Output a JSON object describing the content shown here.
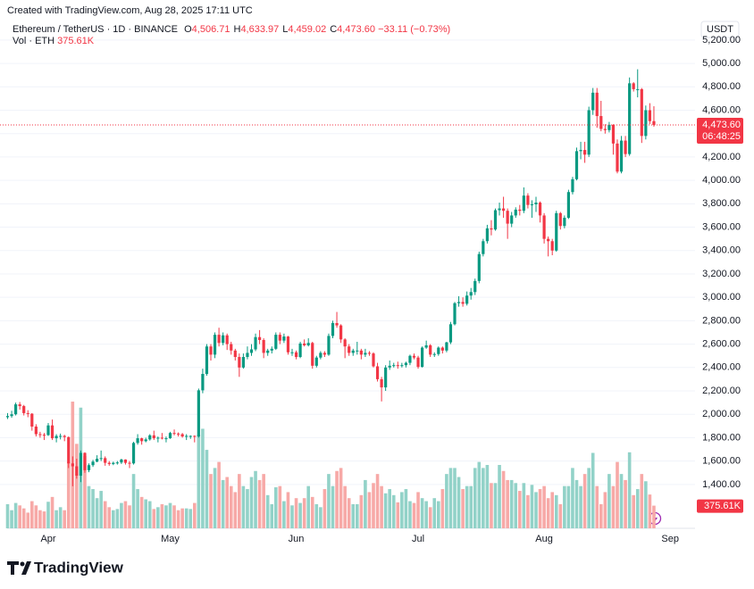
{
  "header": {
    "watermark": "Created with TradingView.com, Aug 28, 2025 17:11 UTC",
    "symbol": "Ethereum / TetherUS · 1D · BINANCE",
    "ohlc": [
      {
        "key": "O",
        "value": "4,506.71"
      },
      {
        "key": "H",
        "value": "4,633.97"
      },
      {
        "key": "L",
        "value": "4,459.02"
      },
      {
        "key": "C",
        "value": "4,473.60"
      }
    ],
    "change": "−33.11 (−0.73%)",
    "volume_name": "Vol · ETH",
    "volume_value": "375.61K"
  },
  "chart_data": {
    "type": "candlestick",
    "currency": "USDT",
    "last_price_label": "4,473.60",
    "countdown": "06:48:25",
    "volume_label": "375.61K",
    "grid": true,
    "colors": {
      "up": "#089981",
      "down": "#f23645",
      "up_volume": "#92d2c8",
      "down_volume": "#f7a9a7"
    },
    "ylim": [
      1025,
      5405
    ],
    "yticks": [
      {
        "value": 1400,
        "label": "1,400.00"
      },
      {
        "value": 1600,
        "label": "1,600.00"
      },
      {
        "value": 1800,
        "label": "1,800.00"
      },
      {
        "value": 2000,
        "label": "2,000.00"
      },
      {
        "value": 2200,
        "label": "2,200.00"
      },
      {
        "value": 2400,
        "label": "2,400.00"
      },
      {
        "value": 2600,
        "label": "2,600.00"
      },
      {
        "value": 2800,
        "label": "2,800.00"
      },
      {
        "value": 3000,
        "label": "3,000.00"
      },
      {
        "value": 3200,
        "label": "3,200.00"
      },
      {
        "value": 3400,
        "label": "3,400.00"
      },
      {
        "value": 3600,
        "label": "3,600.00"
      },
      {
        "value": 3800,
        "label": "3,800.00"
      },
      {
        "value": 4000,
        "label": "4,000.00"
      },
      {
        "value": 4200,
        "label": "4,200.00"
      },
      {
        "value": 4400,
        "label": "4,400.00"
      },
      {
        "value": 4600,
        "label": "4,600.00"
      },
      {
        "value": 4800,
        "label": "4,800.00"
      },
      {
        "value": 5000,
        "label": "5,000.00"
      },
      {
        "value": 5200,
        "label": "5,200.00"
      }
    ],
    "categories": [
      null,
      null,
      null,
      null,
      null,
      null,
      null,
      null,
      null,
      null,
      "Apr",
      null,
      null,
      null,
      null,
      null,
      null,
      null,
      null,
      null,
      null,
      null,
      null,
      null,
      null,
      null,
      null,
      null,
      null,
      null,
      null,
      null,
      null,
      null,
      null,
      null,
      null,
      null,
      null,
      null,
      "May",
      null,
      null,
      null,
      null,
      null,
      null,
      null,
      null,
      null,
      null,
      null,
      null,
      null,
      null,
      null,
      null,
      null,
      null,
      null,
      null,
      null,
      null,
      null,
      null,
      null,
      null,
      null,
      null,
      null,
      null,
      "Jun",
      null,
      null,
      null,
      null,
      null,
      null,
      null,
      null,
      null,
      null,
      null,
      null,
      null,
      null,
      null,
      null,
      null,
      null,
      null,
      null,
      null,
      null,
      null,
      null,
      null,
      null,
      null,
      null,
      null,
      "Jul",
      null,
      null,
      null,
      null,
      null,
      null,
      null,
      null,
      null,
      null,
      null,
      null,
      null,
      null,
      null,
      null,
      null,
      null,
      null,
      null,
      null,
      null,
      null,
      null,
      null,
      null,
      null,
      null,
      null,
      null,
      "Aug",
      null,
      null,
      null,
      null,
      null,
      null,
      null,
      null,
      null,
      null,
      null,
      null,
      null,
      null,
      null,
      null,
      null,
      null,
      null,
      null,
      null,
      null,
      null,
      null,
      null,
      null,
      null,
      null,
      null,
      null,
      "Sep"
    ],
    "open": [
      1975,
      1985,
      2000,
      2085,
      2070,
      2010,
      2005,
      1895,
      1830,
      1825,
      1822,
      1905,
      1795,
      1815,
      1815,
      1805,
      1580,
      1555,
      1475,
      1670,
      1522,
      1565,
      1595,
      1620,
      1625,
      1585,
      1575,
      1585,
      1588,
      1613,
      1585,
      1580,
      1755,
      1795,
      1770,
      1785,
      1820,
      1795,
      1800,
      1795,
      1795,
      1840,
      1835,
      1830,
      1810,
      1815,
      1815,
      1810,
      2205,
      2345,
      2580,
      2510,
      2680,
      2610,
      2675,
      2600,
      2545,
      2490,
      2400,
      2490,
      2525,
      2555,
      2660,
      2635,
      2525,
      2545,
      2560,
      2680,
      2630,
      2665,
      2530,
      2530,
      2490,
      2605,
      2590,
      2610,
      2415,
      2485,
      2525,
      2510,
      2670,
      2780,
      2760,
      2640,
      2580,
      2525,
      2545,
      2545,
      2510,
      2525,
      2520,
      2410,
      2300,
      2230,
      2400,
      2415,
      2420,
      2415,
      2420,
      2440,
      2500,
      2485,
      2405,
      2570,
      2590,
      2510,
      2515,
      2570,
      2545,
      2615,
      2770,
      2950,
      2960,
      2945,
      3015,
      3045,
      3140,
      3370,
      3480,
      3590,
      3580,
      3745,
      3760,
      3740,
      3630,
      3700,
      3750,
      3740,
      3870,
      3790,
      3795,
      3810,
      3700,
      3500,
      3480,
      3400,
      3720,
      3610,
      3680,
      3900,
      4010,
      4250,
      4260,
      4220,
      4600,
      4750,
      4550,
      4440,
      4430,
      4475,
      4315,
      4075,
      4340,
      4225,
      4830,
      4780,
      4780,
      4380,
      4600,
      4506.71,
      null,
      null,
      null,
      null
    ],
    "high": [
      2010,
      2030,
      2100,
      2105,
      2080,
      2035,
      2010,
      1915,
      1850,
      1840,
      1925,
      1955,
      1830,
      1835,
      1825,
      1810,
      1640,
      1620,
      1690,
      1675,
      1580,
      1610,
      1650,
      1690,
      1640,
      1600,
      1595,
      1600,
      1620,
      1615,
      1600,
      1765,
      1830,
      1800,
      1800,
      1830,
      1860,
      1810,
      1840,
      1810,
      1850,
      1870,
      1845,
      1840,
      1830,
      1820,
      1820,
      2220,
      2390,
      2600,
      2600,
      2700,
      2740,
      2700,
      2690,
      2620,
      2560,
      2520,
      2520,
      2580,
      2600,
      2690,
      2720,
      2650,
      2560,
      2580,
      2700,
      2700,
      2690,
      2670,
      2560,
      2545,
      2620,
      2640,
      2650,
      2620,
      2500,
      2540,
      2540,
      2690,
      2800,
      2875,
      2770,
      2650,
      2600,
      2560,
      2620,
      2560,
      2560,
      2540,
      2530,
      2440,
      2320,
      2420,
      2460,
      2440,
      2450,
      2440,
      2450,
      2510,
      2520,
      2500,
      2580,
      2630,
      2600,
      2530,
      2580,
      2580,
      2620,
      2790,
      2960,
      3010,
      3000,
      3050,
      3080,
      3160,
      3390,
      3500,
      3620,
      3660,
      3760,
      3810,
      3860,
      3760,
      3730,
      3770,
      3790,
      3940,
      3890,
      3830,
      3860,
      3820,
      3720,
      3520,
      3500,
      3740,
      3730,
      3700,
      3920,
      4030,
      4280,
      4330,
      4330,
      4630,
      4790,
      4790,
      4680,
      4480,
      4500,
      4480,
      4350,
      4380,
      4380,
      4880,
      4840,
      4950,
      4790,
      4640,
      4660,
      4633.97,
      null,
      null,
      null,
      null
    ],
    "low": [
      1960,
      1970,
      1990,
      2040,
      1990,
      1975,
      1860,
      1810,
      1800,
      1780,
      1815,
      1780,
      1760,
      1785,
      1770,
      1540,
      1385,
      1450,
      1420,
      1500,
      1505,
      1550,
      1590,
      1600,
      1560,
      1560,
      1565,
      1570,
      1575,
      1570,
      1540,
      1570,
      1740,
      1740,
      1760,
      1775,
      1780,
      1760,
      1785,
      1760,
      1790,
      1820,
      1810,
      1800,
      1780,
      1790,
      1760,
      1800,
      2180,
      2330,
      2460,
      2480,
      2580,
      2590,
      2550,
      2510,
      2460,
      2320,
      2390,
      2470,
      2500,
      2540,
      2600,
      2480,
      2500,
      2520,
      2550,
      2600,
      2610,
      2510,
      2500,
      2470,
      2480,
      2580,
      2580,
      2390,
      2400,
      2470,
      2490,
      2500,
      2650,
      2740,
      2610,
      2480,
      2500,
      2500,
      2510,
      2470,
      2490,
      2500,
      2400,
      2280,
      2110,
      2200,
      2380,
      2400,
      2390,
      2400,
      2400,
      2420,
      2470,
      2390,
      2400,
      2560,
      2490,
      2490,
      2500,
      2520,
      2530,
      2600,
      2760,
      2920,
      2920,
      2930,
      2980,
      3020,
      3120,
      3350,
      3460,
      3530,
      3570,
      3700,
      3680,
      3500,
      3600,
      3680,
      3700,
      3720,
      3760,
      3680,
      3730,
      3640,
      3460,
      3350,
      3360,
      3390,
      3580,
      3590,
      3670,
      3880,
      4000,
      4180,
      4150,
      4200,
      4560,
      4450,
      4420,
      4400,
      4410,
      4220,
      4060,
      4060,
      4200,
      4210,
      4760,
      4710,
      4320,
      4350,
      4480,
      4459.02,
      null,
      null,
      null,
      null
    ],
    "close": [
      1985,
      2000,
      2085,
      2070,
      2010,
      2005,
      1895,
      1830,
      1825,
      1822,
      1905,
      1795,
      1815,
      1815,
      1805,
      1580,
      1555,
      1475,
      1670,
      1522,
      1565,
      1595,
      1620,
      1625,
      1585,
      1575,
      1585,
      1588,
      1613,
      1585,
      1580,
      1755,
      1795,
      1770,
      1785,
      1820,
      1795,
      1800,
      1795,
      1795,
      1840,
      1835,
      1830,
      1810,
      1815,
      1815,
      1810,
      2205,
      2345,
      2580,
      2510,
      2680,
      2610,
      2675,
      2600,
      2545,
      2490,
      2400,
      2490,
      2525,
      2555,
      2660,
      2635,
      2525,
      2545,
      2560,
      2680,
      2630,
      2665,
      2530,
      2530,
      2490,
      2605,
      2590,
      2610,
      2415,
      2485,
      2525,
      2510,
      2670,
      2780,
      2760,
      2640,
      2580,
      2525,
      2545,
      2545,
      2510,
      2525,
      2520,
      2410,
      2300,
      2230,
      2400,
      2415,
      2420,
      2415,
      2420,
      2440,
      2500,
      2485,
      2405,
      2570,
      2590,
      2510,
      2515,
      2570,
      2545,
      2615,
      2770,
      2950,
      2960,
      2945,
      3015,
      3045,
      3140,
      3370,
      3480,
      3590,
      3580,
      3745,
      3760,
      3740,
      3630,
      3700,
      3750,
      3740,
      3870,
      3790,
      3795,
      3810,
      3700,
      3500,
      3480,
      3400,
      3720,
      3610,
      3680,
      3900,
      4010,
      4250,
      4260,
      4220,
      4600,
      4750,
      4550,
      4440,
      4430,
      4475,
      4315,
      4075,
      4340,
      4225,
      4830,
      4780,
      4780,
      4380,
      4600,
      4506.71,
      4473.6,
      null,
      null,
      null,
      null
    ],
    "volume": [
      400000,
      300000,
      420000,
      380000,
      330000,
      260000,
      450000,
      380000,
      300000,
      280000,
      440000,
      520000,
      300000,
      350000,
      300000,
      1100000,
      2100000,
      1400000,
      2000000,
      1200000,
      700000,
      650000,
      500000,
      620000,
      450000,
      350000,
      300000,
      320000,
      420000,
      450000,
      380000,
      900000,
      650000,
      520000,
      480000,
      450000,
      320000,
      350000,
      400000,
      380000,
      420000,
      380000,
      300000,
      330000,
      330000,
      320000,
      420000,
      1550000,
      1650000,
      1300000,
      900000,
      1000000,
      1100000,
      800000,
      850000,
      700000,
      600000,
      900000,
      700000,
      650000,
      850000,
      950000,
      800000,
      900000,
      550000,
      400000,
      680000,
      700000,
      450000,
      600000,
      380000,
      500000,
      420000,
      500000,
      700000,
      520000,
      400000,
      350000,
      650000,
      900000,
      700000,
      950000,
      1000000,
      700000,
      500000,
      400000,
      400000,
      550000,
      800000,
      600000,
      750000,
      900000,
      700000,
      580000,
      650000,
      550000,
      430000,
      600000,
      650000,
      450000,
      420000,
      600000,
      500000,
      450000,
      350000,
      500000,
      450000,
      650000,
      900000,
      1000000,
      1000000,
      850000,
      650000,
      700000,
      700000,
      1000000,
      1100000,
      1000000,
      1050000,
      750000,
      750000,
      1050000,
      950000,
      800000,
      800000,
      750000,
      620000,
      750000,
      550000,
      720000,
      600000,
      650000,
      700000,
      500000,
      600000,
      550000,
      400000,
      700000,
      700000,
      1000000,
      800000,
      700000,
      900000,
      1000000,
      1250000,
      700000,
      400000,
      600000,
      900000,
      700000,
      1100000,
      900000,
      800000,
      1260000,
      550000,
      650000,
      900000,
      780000,
      560000,
      375610,
      null,
      null,
      null,
      null
    ]
  },
  "footer": {
    "brand": "TradingView"
  }
}
